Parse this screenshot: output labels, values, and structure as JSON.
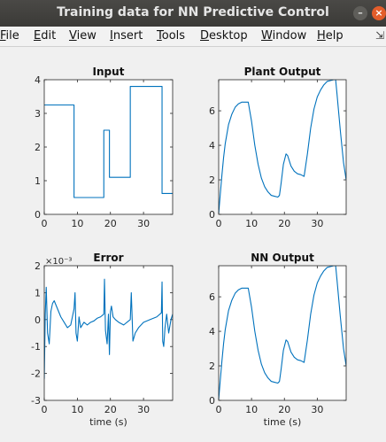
{
  "window": {
    "title": "Training data for NN Predictive Control",
    "minimize_glyph": "–",
    "close_glyph": "×"
  },
  "menu": {
    "items": [
      {
        "label": "File",
        "key": "F",
        "rest": "ile"
      },
      {
        "label": "Edit",
        "key": "E",
        "rest": "dit"
      },
      {
        "label": "View",
        "key": "V",
        "rest": "iew"
      },
      {
        "label": "Insert",
        "key": "I",
        "rest": "nsert"
      },
      {
        "label": "Tools",
        "key": "T",
        "rest": "ools"
      },
      {
        "label": "Desktop",
        "key": "D",
        "rest": "esktop"
      },
      {
        "label": "Window",
        "key": "W",
        "rest": "indow"
      },
      {
        "label": "Help",
        "key": "H",
        "rest": "elp"
      }
    ],
    "pin_glyph": "⇲"
  },
  "colors": {
    "line": "#0072bd",
    "axes_bg": "#ffffff",
    "figure_bg": "#f0f0f0",
    "titlebar": "#3d3c39",
    "close": "#e35d2b"
  },
  "chart_data": [
    {
      "type": "line",
      "title": "Input",
      "xlabel": "",
      "ylabel": "",
      "xlim": [
        0,
        38.8
      ],
      "ylim": [
        0,
        4
      ],
      "xticks": [
        0,
        10,
        20,
        30
      ],
      "yticks": [
        0,
        1,
        2,
        3,
        4
      ],
      "exponent": "",
      "x": [
        0,
        9,
        9,
        18,
        18,
        19.7,
        19.7,
        26,
        26,
        35.6,
        35.6,
        38.8
      ],
      "y": [
        3.25,
        3.25,
        0.5,
        0.5,
        2.5,
        2.5,
        1.1,
        1.1,
        3.8,
        3.8,
        0.62,
        0.62
      ]
    },
    {
      "type": "line",
      "title": "Plant Output",
      "xlabel": "",
      "ylabel": "",
      "xlim": [
        0,
        38.8
      ],
      "ylim": [
        0,
        7.8
      ],
      "xticks": [
        0,
        10,
        20,
        30
      ],
      "yticks": [
        0,
        2,
        4,
        6
      ],
      "exponent": "",
      "x": [
        0,
        0.5,
        1,
        1.5,
        2,
        3,
        4,
        5,
        6,
        7,
        8,
        9,
        10,
        11,
        12,
        13,
        14,
        15,
        16,
        17,
        18,
        18.5,
        19,
        19.7,
        20.5,
        21,
        22,
        23,
        24,
        25,
        26,
        27,
        28,
        29,
        30,
        31,
        32,
        33,
        34,
        35,
        35.6,
        36,
        37,
        38,
        38.8
      ],
      "y": [
        0.05,
        1.2,
        2.3,
        3.3,
        4.1,
        5.2,
        5.8,
        6.2,
        6.4,
        6.5,
        6.5,
        6.5,
        5.4,
        4.0,
        2.9,
        2.1,
        1.6,
        1.3,
        1.1,
        1.05,
        1.0,
        1.1,
        1.8,
        2.9,
        3.5,
        3.4,
        2.8,
        2.5,
        2.35,
        2.3,
        2.2,
        3.5,
        5.0,
        6.1,
        6.8,
        7.2,
        7.5,
        7.7,
        7.75,
        7.8,
        7.8,
        7.0,
        4.9,
        3.0,
        2.0
      ]
    },
    {
      "type": "line",
      "title": "Error",
      "xlabel": "time (s)",
      "ylabel": "",
      "xlim": [
        0,
        38.8
      ],
      "ylim": [
        -3,
        2
      ],
      "xticks": [
        0,
        10,
        20,
        30
      ],
      "yticks": [
        -3,
        -2,
        -1,
        0,
        1,
        2
      ],
      "exponent": "×10⁻³",
      "x": [
        0,
        0.3,
        0.6,
        1,
        1.5,
        2,
        2.5,
        3,
        4,
        5,
        6,
        7,
        8,
        9,
        9.3,
        9.6,
        10,
        10.5,
        11,
        12,
        13,
        14,
        15,
        16,
        17,
        18,
        18.2,
        18.5,
        19,
        19.4,
        19.7,
        20,
        20.3,
        20.8,
        21.5,
        22.5,
        24,
        25,
        26,
        26.3,
        26.8,
        27.5,
        28.5,
        30,
        32,
        34,
        35.4,
        35.6,
        35.8,
        36.1,
        36.5,
        37,
        37.6,
        38.3,
        38.8
      ],
      "y": [
        -2.2,
        0.2,
        1.2,
        -0.5,
        -0.9,
        0.3,
        0.6,
        0.7,
        0.4,
        0.1,
        -0.1,
        -0.3,
        -0.2,
        0.4,
        1.0,
        -0.5,
        -0.8,
        0.1,
        -0.3,
        -0.1,
        -0.2,
        -0.1,
        -0.05,
        0.05,
        0.1,
        0.2,
        1.5,
        -0.4,
        -0.9,
        0.2,
        -1.3,
        0.3,
        0.5,
        0.1,
        0.0,
        -0.1,
        -0.2,
        -0.1,
        0.0,
        1.0,
        -0.8,
        -0.5,
        -0.3,
        -0.1,
        0.0,
        0.1,
        0.25,
        1.4,
        -0.8,
        -1.0,
        -0.3,
        0.2,
        -0.5,
        0.0,
        0.2
      ]
    },
    {
      "type": "line",
      "title": "NN Output",
      "xlabel": "time (s)",
      "ylabel": "",
      "xlim": [
        0,
        38.8
      ],
      "ylim": [
        0,
        7.8
      ],
      "xticks": [
        0,
        10,
        20,
        30
      ],
      "yticks": [
        0,
        2,
        4,
        6
      ],
      "exponent": "",
      "x": [
        0,
        0.5,
        1,
        1.5,
        2,
        3,
        4,
        5,
        6,
        7,
        8,
        9,
        10,
        11,
        12,
        13,
        14,
        15,
        16,
        17,
        18,
        18.5,
        19,
        19.7,
        20.5,
        21,
        22,
        23,
        24,
        25,
        26,
        27,
        28,
        29,
        30,
        31,
        32,
        33,
        34,
        35,
        35.6,
        36,
        37,
        38,
        38.8
      ],
      "y": [
        0.05,
        1.2,
        2.3,
        3.3,
        4.1,
        5.2,
        5.8,
        6.2,
        6.4,
        6.5,
        6.5,
        6.5,
        5.4,
        4.0,
        2.9,
        2.1,
        1.6,
        1.3,
        1.1,
        1.05,
        1.0,
        1.1,
        1.8,
        2.9,
        3.5,
        3.4,
        2.8,
        2.5,
        2.35,
        2.3,
        2.2,
        3.5,
        5.0,
        6.1,
        6.8,
        7.2,
        7.5,
        7.7,
        7.75,
        7.8,
        7.8,
        7.0,
        4.9,
        3.0,
        2.0
      ]
    }
  ]
}
